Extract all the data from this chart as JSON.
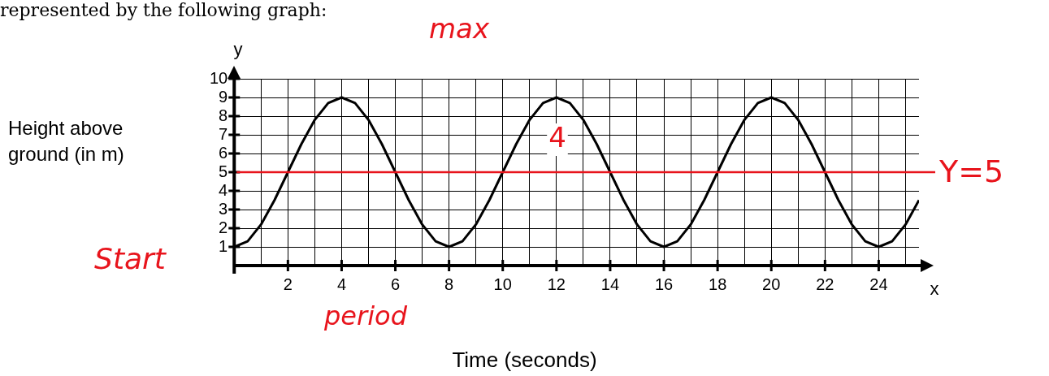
{
  "chart_data": {
    "type": "line",
    "title": "represented by the following graph:",
    "xlabel": "Time (seconds)",
    "ylabel": "Height above ground (in m)",
    "annotations": [
      "y",
      "x",
      "max",
      "4",
      "Start",
      "period"
    ],
    "x": [
      0,
      0.5,
      1,
      1.5,
      2,
      2.5,
      3,
      3.5,
      4,
      4.5,
      5,
      5.5,
      6,
      6.5,
      7,
      7.5,
      8,
      8.5,
      9,
      9.5,
      10,
      10.5,
      11,
      11.5,
      12,
      12.5,
      13,
      13.5,
      14,
      14.5,
      15,
      15.5,
      16,
      16.5,
      17,
      17.5,
      18,
      18.5,
      19,
      19.5,
      20,
      20.5,
      21,
      21.5,
      22,
      22.5,
      23,
      23.5,
      24,
      24.5,
      25,
      25.5
    ],
    "series": [
      {
        "color": "#000000",
        "values": [
          1,
          1.3,
          2.2,
          3.5,
          5,
          6.5,
          7.8,
          8.7,
          9,
          8.7,
          7.8,
          6.5,
          5,
          3.5,
          2.2,
          1.3,
          1,
          1.3,
          2.2,
          3.5,
          5,
          6.5,
          7.8,
          8.7,
          9,
          8.7,
          7.8,
          6.5,
          5,
          3.5,
          2.2,
          1.3,
          1,
          1.3,
          2.2,
          3.5,
          5,
          6.5,
          7.8,
          8.7,
          9,
          8.7,
          7.8,
          6.5,
          5,
          3.5,
          2.2,
          1.3,
          1,
          1.3,
          2.2,
          3.5
        ]
      }
    ],
    "xlim": [
      0,
      25.5
    ],
    "xticks": [
      {
        "value": 0,
        "label": null
      },
      {
        "value": 1,
        "label": null
      },
      2,
      {
        "value": 3,
        "label": null
      },
      4,
      {
        "value": 5,
        "label": null
      },
      6,
      {
        "value": 7,
        "label": null
      },
      8,
      {
        "value": 9,
        "label": null
      },
      10,
      {
        "value": 11,
        "label": null
      },
      12,
      {
        "value": 13,
        "label": null
      },
      14,
      {
        "value": 15,
        "label": null
      },
      16,
      {
        "value": 17,
        "label": null
      },
      18,
      {
        "value": 19,
        "label": null
      },
      20,
      {
        "value": 21,
        "label": null
      },
      22,
      {
        "value": 23,
        "label": null
      },
      24,
      {
        "value": 25,
        "label": null
      }
    ],
    "ylim": [
      0,
      10
    ],
    "yticks": [
      {
        "value": 0,
        "label": null
      },
      1,
      2,
      3,
      4,
      5,
      6,
      7,
      8,
      9,
      10
    ],
    "ref_lines": [
      {
        "axis": "y",
        "value": 5,
        "label": "Y=5",
        "color": "#e8141c"
      }
    ],
    "grid": true,
    "legend": false,
    "marker": "none",
    "line_style": "solid"
  }
}
